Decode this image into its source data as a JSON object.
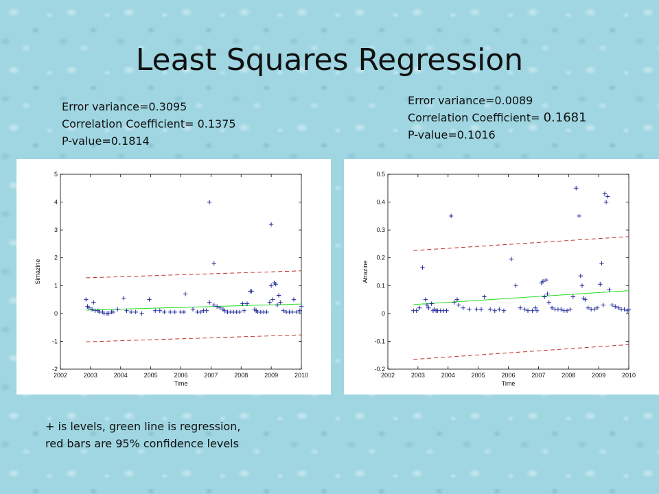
{
  "slide": {
    "title": "Least Squares Regression",
    "caption_line1": "+ is levels, green line is regression,",
    "caption_line2": "red bars are 95% confidence levels"
  },
  "stats_left": {
    "line1": "Error variance=0.3095",
    "line2": "Correlation Coefficient= 0.1375",
    "line3": "P-value=0.1814"
  },
  "stats_right": {
    "line1": "Error variance=0.0089",
    "line2_prefix": "Correlation Coefficient= ",
    "line2_value": "0.1681",
    "line3": "P-value=0.1016"
  },
  "colors": {
    "marker": "#1f2a9b",
    "regression": "#22dd22",
    "confidence": "#c0302a"
  },
  "chart_data": [
    {
      "type": "scatter",
      "title": "",
      "xlabel": "Time",
      "ylabel": "Simazine",
      "xlim": [
        2002,
        2010
      ],
      "ylim": [
        -2,
        5
      ],
      "xticks": [
        2002,
        2003,
        2004,
        2005,
        2006,
        2007,
        2008,
        2009,
        2010
      ],
      "yticks": [
        -2,
        -1,
        0,
        1,
        2,
        3,
        4,
        5
      ],
      "grid": false,
      "legend": "none",
      "points": [
        [
          2002.85,
          0.5
        ],
        [
          2002.9,
          0.25
        ],
        [
          2002.95,
          0.2
        ],
        [
          2003.05,
          0.15
        ],
        [
          2003.1,
          0.4
        ],
        [
          2003.15,
          0.1
        ],
        [
          2003.25,
          0.1
        ],
        [
          2003.3,
          0.05
        ],
        [
          2003.4,
          0.05
        ],
        [
          2003.45,
          0.0
        ],
        [
          2003.55,
          0.0
        ],
        [
          2003.6,
          0.0
        ],
        [
          2003.7,
          0.05
        ],
        [
          2003.75,
          0.05
        ],
        [
          2003.9,
          0.15
        ],
        [
          2004.1,
          0.55
        ],
        [
          2004.2,
          0.1
        ],
        [
          2004.35,
          0.05
        ],
        [
          2004.5,
          0.05
        ],
        [
          2004.7,
          0.0
        ],
        [
          2004.95,
          0.5
        ],
        [
          2005.15,
          0.1
        ],
        [
          2005.3,
          0.1
        ],
        [
          2005.45,
          0.05
        ],
        [
          2005.65,
          0.05
        ],
        [
          2005.8,
          0.05
        ],
        [
          2006.0,
          0.05
        ],
        [
          2006.1,
          0.05
        ],
        [
          2006.15,
          0.7
        ],
        [
          2006.4,
          0.15
        ],
        [
          2006.55,
          0.05
        ],
        [
          2006.65,
          0.05
        ],
        [
          2006.75,
          0.1
        ],
        [
          2006.85,
          0.1
        ],
        [
          2006.95,
          4.0
        ],
        [
          2006.95,
          0.4
        ],
        [
          2007.1,
          1.8
        ],
        [
          2007.1,
          0.3
        ],
        [
          2007.2,
          0.25
        ],
        [
          2007.3,
          0.2
        ],
        [
          2007.4,
          0.15
        ],
        [
          2007.45,
          0.1
        ],
        [
          2007.55,
          0.05
        ],
        [
          2007.65,
          0.05
        ],
        [
          2007.75,
          0.05
        ],
        [
          2007.85,
          0.05
        ],
        [
          2007.95,
          0.05
        ],
        [
          2008.05,
          0.35
        ],
        [
          2008.1,
          0.1
        ],
        [
          2008.2,
          0.35
        ],
        [
          2008.3,
          0.8
        ],
        [
          2008.35,
          0.8
        ],
        [
          2008.45,
          0.15
        ],
        [
          2008.5,
          0.1
        ],
        [
          2008.55,
          0.05
        ],
        [
          2008.65,
          0.05
        ],
        [
          2008.75,
          0.05
        ],
        [
          2008.85,
          0.05
        ],
        [
          2008.95,
          0.4
        ],
        [
          2009.0,
          3.2
        ],
        [
          2009.0,
          1.0
        ],
        [
          2009.05,
          0.5
        ],
        [
          2009.1,
          1.1
        ],
        [
          2009.15,
          1.05
        ],
        [
          2009.2,
          0.3
        ],
        [
          2009.25,
          0.65
        ],
        [
          2009.3,
          0.4
        ],
        [
          2009.4,
          0.1
        ],
        [
          2009.5,
          0.05
        ],
        [
          2009.6,
          0.05
        ],
        [
          2009.7,
          0.05
        ],
        [
          2009.75,
          0.5
        ],
        [
          2009.85,
          0.05
        ],
        [
          2009.95,
          0.1
        ],
        [
          2010.0,
          0.25
        ]
      ],
      "regression": {
        "x": [
          2002.85,
          2010
        ],
        "y": [
          0.12,
          0.34
        ]
      },
      "upper_confidence": {
        "x": [
          2002.85,
          2010
        ],
        "y": [
          1.28,
          1.53
        ]
      },
      "lower_confidence": {
        "x": [
          2002.85,
          2010
        ],
        "y": [
          -1.02,
          -0.77
        ]
      }
    },
    {
      "type": "scatter",
      "title": "",
      "xlabel": "Time",
      "ylabel": "Atrazine",
      "xlim": [
        2002,
        2010
      ],
      "ylim": [
        -0.2,
        0.5
      ],
      "xticks": [
        2002,
        2003,
        2004,
        2005,
        2006,
        2007,
        2008,
        2009,
        2010
      ],
      "yticks": [
        -0.2,
        -0.1,
        0,
        0.1,
        0.2,
        0.3,
        0.4,
        0.5
      ],
      "grid": false,
      "legend": "none",
      "points": [
        [
          2002.85,
          0.01
        ],
        [
          2002.95,
          0.01
        ],
        [
          2003.05,
          0.02
        ],
        [
          2003.15,
          0.165
        ],
        [
          2003.25,
          0.05
        ],
        [
          2003.3,
          0.03
        ],
        [
          2003.35,
          0.02
        ],
        [
          2003.45,
          0.035
        ],
        [
          2003.5,
          0.01
        ],
        [
          2003.55,
          0.015
        ],
        [
          2003.6,
          0.01
        ],
        [
          2003.65,
          0.01
        ],
        [
          2003.75,
          0.01
        ],
        [
          2003.85,
          0.01
        ],
        [
          2003.95,
          0.01
        ],
        [
          2004.1,
          0.35
        ],
        [
          2004.2,
          0.04
        ],
        [
          2004.3,
          0.05
        ],
        [
          2004.35,
          0.03
        ],
        [
          2004.5,
          0.02
        ],
        [
          2004.7,
          0.015
        ],
        [
          2004.95,
          0.015
        ],
        [
          2005.1,
          0.015
        ],
        [
          2005.2,
          0.06
        ],
        [
          2005.4,
          0.015
        ],
        [
          2005.55,
          0.01
        ],
        [
          2005.7,
          0.015
        ],
        [
          2005.85,
          0.01
        ],
        [
          2006.1,
          0.195
        ],
        [
          2006.25,
          0.1
        ],
        [
          2006.4,
          0.02
        ],
        [
          2006.55,
          0.015
        ],
        [
          2006.65,
          0.01
        ],
        [
          2006.8,
          0.01
        ],
        [
          2006.9,
          0.02
        ],
        [
          2006.95,
          0.01
        ],
        [
          2007.1,
          0.11
        ],
        [
          2007.15,
          0.115
        ],
        [
          2007.2,
          0.06
        ],
        [
          2007.25,
          0.12
        ],
        [
          2007.3,
          0.07
        ],
        [
          2007.35,
          0.04
        ],
        [
          2007.45,
          0.02
        ],
        [
          2007.55,
          0.015
        ],
        [
          2007.65,
          0.015
        ],
        [
          2007.75,
          0.015
        ],
        [
          2007.85,
          0.01
        ],
        [
          2007.95,
          0.01
        ],
        [
          2008.05,
          0.015
        ],
        [
          2008.15,
          0.06
        ],
        [
          2008.25,
          0.45
        ],
        [
          2008.35,
          0.35
        ],
        [
          2008.4,
          0.135
        ],
        [
          2008.45,
          0.1
        ],
        [
          2008.5,
          0.055
        ],
        [
          2008.55,
          0.05
        ],
        [
          2008.65,
          0.02
        ],
        [
          2008.75,
          0.015
        ],
        [
          2008.85,
          0.015
        ],
        [
          2008.95,
          0.02
        ],
        [
          2009.05,
          0.105
        ],
        [
          2009.1,
          0.18
        ],
        [
          2009.15,
          0.03
        ],
        [
          2009.2,
          0.43
        ],
        [
          2009.25,
          0.4
        ],
        [
          2009.3,
          0.42
        ],
        [
          2009.35,
          0.085
        ],
        [
          2009.45,
          0.03
        ],
        [
          2009.55,
          0.025
        ],
        [
          2009.65,
          0.02
        ],
        [
          2009.75,
          0.015
        ],
        [
          2009.85,
          0.015
        ],
        [
          2009.95,
          0.01
        ],
        [
          2010.0,
          0.015
        ]
      ],
      "regression": {
        "x": [
          2002.85,
          2010
        ],
        "y": [
          0.032,
          0.082
        ]
      },
      "upper_confidence": {
        "x": [
          2002.85,
          2010
        ],
        "y": [
          0.226,
          0.276
        ]
      },
      "lower_confidence": {
        "x": [
          2002.85,
          2010
        ],
        "y": [
          -0.165,
          -0.112
        ]
      }
    }
  ]
}
